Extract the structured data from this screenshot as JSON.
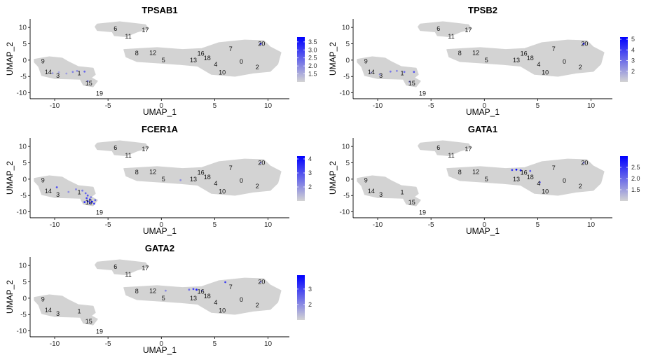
{
  "chart_data": {
    "type": "scatter",
    "description_axes": {
      "xlabel": "UMAP_1",
      "ylabel": "UMAP_2",
      "xticks": [
        -10,
        -5,
        0,
        5,
        10
      ],
      "yticks": [
        10,
        5,
        0,
        -5,
        -10
      ],
      "xlim": [
        -12.3,
        12.0
      ],
      "ylim": [
        -11.8,
        12.6
      ]
    },
    "color_scale": {
      "low": "#d3d3d3",
      "high": "#0000ff"
    },
    "clusters": [
      {
        "label": "0",
        "x": 7.5,
        "y": -0.5
      },
      {
        "label": "1",
        "x": -7.7,
        "y": -4.0
      },
      {
        "label": "2",
        "x": 9.0,
        "y": -2.2
      },
      {
        "label": "3",
        "x": -9.7,
        "y": -4.7
      },
      {
        "label": "4",
        "x": 5.1,
        "y": -1.3
      },
      {
        "label": "5",
        "x": 0.2,
        "y": 0.0
      },
      {
        "label": "6",
        "x": -4.3,
        "y": 9.6
      },
      {
        "label": "7",
        "x": 6.5,
        "y": 3.4
      },
      {
        "label": "8",
        "x": -2.3,
        "y": 2.1
      },
      {
        "label": "9",
        "x": -11.1,
        "y": -0.3
      },
      {
        "label": "10",
        "x": 5.7,
        "y": -3.8
      },
      {
        "label": "11",
        "x": -3.1,
        "y": 7.2
      },
      {
        "label": "12",
        "x": -0.8,
        "y": 2.2
      },
      {
        "label": "13",
        "x": 3.0,
        "y": 0.0
      },
      {
        "label": "14",
        "x": -10.6,
        "y": -3.7
      },
      {
        "label": "15",
        "x": -6.8,
        "y": -7.1
      },
      {
        "label": "16",
        "x": 3.7,
        "y": 2.0
      },
      {
        "label": "17",
        "x": -1.5,
        "y": 9.2
      },
      {
        "label": "18",
        "x": 4.3,
        "y": 0.6
      },
      {
        "label": "19",
        "x": -5.8,
        "y": -10.2
      },
      {
        "label": "20",
        "x": 9.4,
        "y": 5.0
      }
    ],
    "panels": [
      {
        "title": "TPSAB1",
        "legend": {
          "min": 1.0,
          "max": 3.8,
          "ticks": [
            "3.5",
            "3.0",
            "2.5",
            "2.0",
            "1.5"
          ],
          "tick_values": [
            3.5,
            3.0,
            2.5,
            2.0,
            1.5
          ]
        },
        "expressing_points": [
          {
            "x": -10.2,
            "y": -4.0,
            "v": 1.8
          },
          {
            "x": -9.6,
            "y": -3.7,
            "v": 1.6
          },
          {
            "x": -8.9,
            "y": -4.1,
            "v": 1.7
          },
          {
            "x": -8.3,
            "y": -3.6,
            "v": 2.0
          },
          {
            "x": -7.9,
            "y": -3.3,
            "v": 1.9
          },
          {
            "x": -7.2,
            "y": -3.5,
            "v": 2.4
          },
          {
            "x": -6.9,
            "y": -6.4,
            "v": 2.1
          },
          {
            "x": 9.3,
            "y": 5.0,
            "v": 3.5
          }
        ]
      },
      {
        "title": "TPSB2",
        "legend": {
          "min": 1.0,
          "max": 5.2,
          "ticks": [
            "5",
            "4",
            "3",
            "2"
          ],
          "tick_values": [
            5,
            4,
            3,
            2
          ]
        },
        "expressing_points": [
          {
            "x": -10.6,
            "y": -3.8,
            "v": 2.0
          },
          {
            "x": -9.8,
            "y": -4.4,
            "v": 2.3
          },
          {
            "x": -8.8,
            "y": -3.5,
            "v": 2.8
          },
          {
            "x": -8.2,
            "y": -3.3,
            "v": 2.5
          },
          {
            "x": -7.5,
            "y": -3.6,
            "v": 3.0
          },
          {
            "x": -6.6,
            "y": -3.6,
            "v": 3.4
          },
          {
            "x": -7.0,
            "y": -6.6,
            "v": 2.6
          },
          {
            "x": 9.3,
            "y": 5.0,
            "v": 4.8
          }
        ]
      },
      {
        "title": "FCER1A",
        "legend": {
          "min": 1.0,
          "max": 4.2,
          "ticks": [
            "4",
            "3",
            "2"
          ],
          "tick_values": [
            4,
            3,
            2
          ]
        },
        "expressing_points": [
          {
            "x": -9.8,
            "y": -2.5,
            "v": 3.0
          },
          {
            "x": -8.7,
            "y": -3.9,
            "v": 2.0
          },
          {
            "x": -8.0,
            "y": -3.1,
            "v": 2.2
          },
          {
            "x": -7.4,
            "y": -3.5,
            "v": 2.4
          },
          {
            "x": -7.1,
            "y": -4.3,
            "v": 2.6
          },
          {
            "x": -6.9,
            "y": -5.0,
            "v": 2.9
          },
          {
            "x": -7.0,
            "y": -5.8,
            "v": 3.1
          },
          {
            "x": -6.7,
            "y": -6.2,
            "v": 3.5
          },
          {
            "x": -6.9,
            "y": -6.8,
            "v": 3.8
          },
          {
            "x": -6.5,
            "y": -6.9,
            "v": 4.0
          },
          {
            "x": -6.7,
            "y": -7.3,
            "v": 3.6
          },
          {
            "x": -6.3,
            "y": -7.5,
            "v": 3.2
          },
          {
            "x": -7.2,
            "y": -7.0,
            "v": 3.4
          },
          {
            "x": -6.2,
            "y": -6.4,
            "v": 2.8
          },
          {
            "x": -6.6,
            "y": -5.5,
            "v": 2.3
          },
          {
            "x": 1.8,
            "y": -0.3,
            "v": 2.0
          },
          {
            "x": 9.3,
            "y": 5.0,
            "v": 2.2
          }
        ]
      },
      {
        "title": "GATA1",
        "legend": {
          "min": 1.0,
          "max": 3.0,
          "ticks": [
            "2.5",
            "2.0",
            "1.5"
          ],
          "tick_values": [
            2.5,
            2.0,
            1.5
          ]
        },
        "expressing_points": [
          {
            "x": 2.6,
            "y": 2.8,
            "v": 2.4
          },
          {
            "x": 3.0,
            "y": 2.9,
            "v": 2.9
          },
          {
            "x": 3.4,
            "y": 2.7,
            "v": 2.7
          },
          {
            "x": 4.3,
            "y": 2.5,
            "v": 2.1
          },
          {
            "x": 5.2,
            "y": -1.0,
            "v": 2.0
          },
          {
            "x": 9.3,
            "y": 5.0,
            "v": 1.8
          }
        ]
      },
      {
        "title": "GATA2",
        "legend": {
          "min": 1.0,
          "max": 3.9,
          "ticks": [
            "3",
            "2"
          ],
          "tick_values": [
            3,
            2
          ]
        },
        "expressing_points": [
          {
            "x": 0.4,
            "y": 2.3,
            "v": 2.0
          },
          {
            "x": 2.6,
            "y": 2.6,
            "v": 2.3
          },
          {
            "x": 3.0,
            "y": 2.8,
            "v": 2.9
          },
          {
            "x": 3.3,
            "y": 2.6,
            "v": 3.5
          },
          {
            "x": 3.8,
            "y": 2.3,
            "v": 2.4
          },
          {
            "x": 6.0,
            "y": 4.9,
            "v": 3.0
          },
          {
            "x": 9.3,
            "y": 5.0,
            "v": 2.1
          }
        ]
      }
    ]
  }
}
